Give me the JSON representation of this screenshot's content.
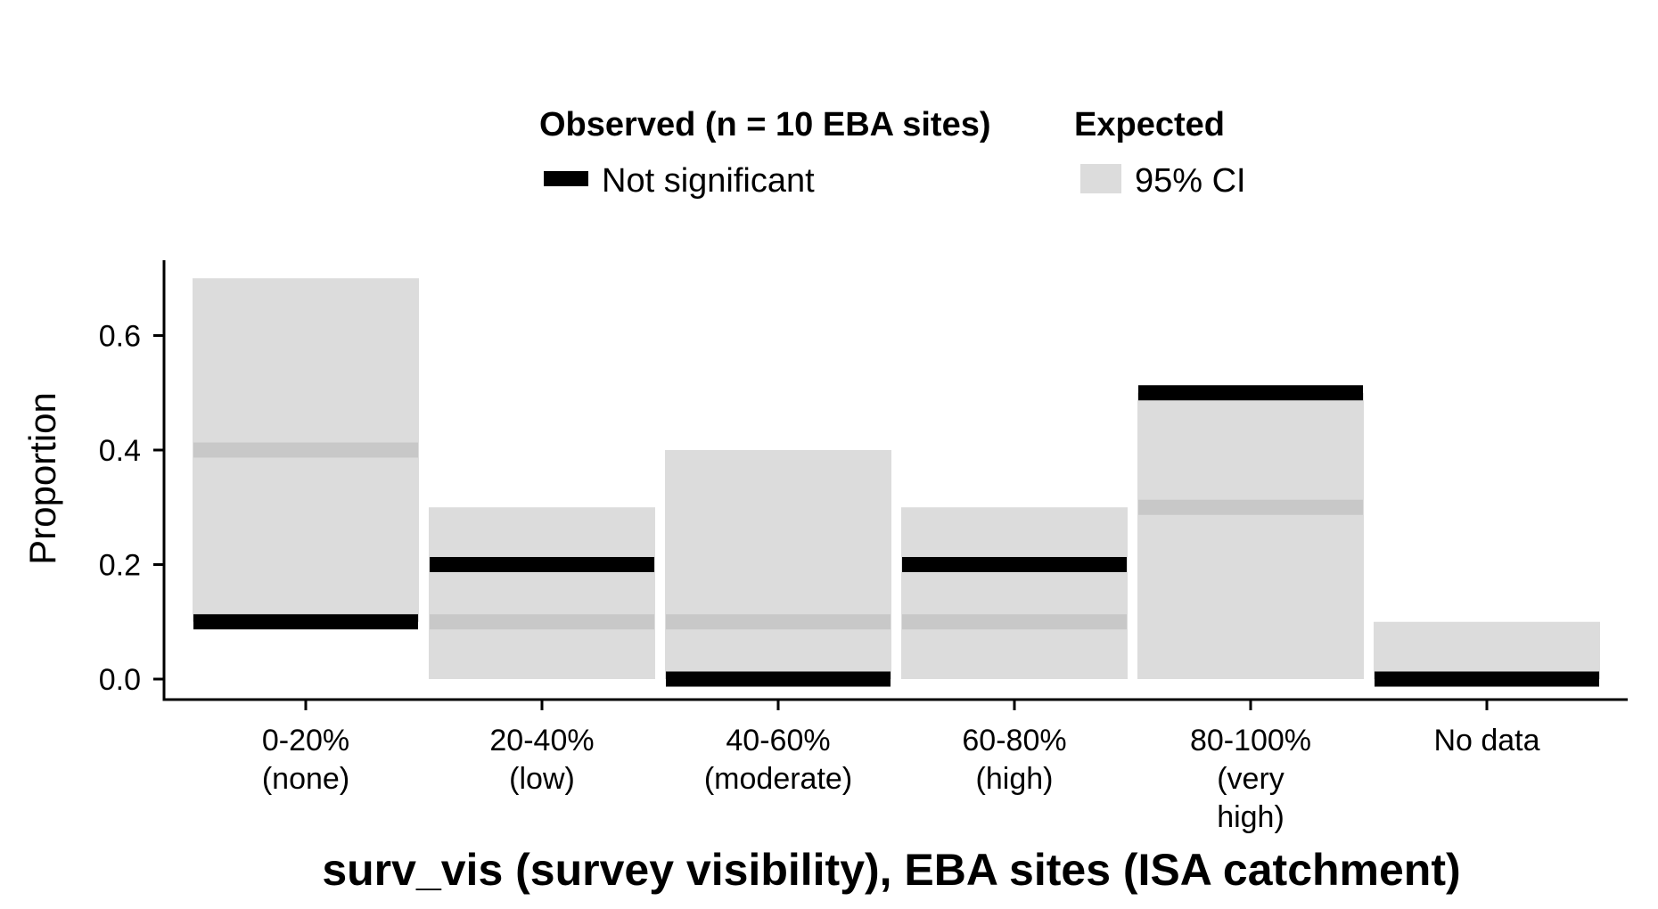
{
  "chart_data": {
    "type": "bar",
    "xlabel": "surv_vis (survey visibility), EBA sites (ISA catchment)",
    "ylabel": "Proportion",
    "ylim": [
      0,
      0.7
    ],
    "yticks": [
      "0.0",
      "0.2",
      "0.4",
      "0.6"
    ],
    "ytick_values": [
      0.0,
      0.2,
      0.4,
      0.6
    ],
    "grid": false,
    "legend_position": "top",
    "categories": [
      [
        "0-20%",
        "(none)"
      ],
      [
        "20-40%",
        "(low)"
      ],
      [
        "40-60%",
        "(moderate)"
      ],
      [
        "60-80%",
        "(high)"
      ],
      [
        "80-100%",
        "(very",
        "high)"
      ],
      [
        "No data"
      ]
    ],
    "observed": [
      0.1,
      0.2,
      0.0,
      0.2,
      0.5,
      0.0
    ],
    "expected": [
      0.4,
      0.1,
      0.1,
      0.1,
      0.3,
      0.0
    ],
    "ci_low": [
      0.1,
      0.0,
      0.0,
      0.0,
      0.0,
      0.0
    ],
    "ci_high": [
      0.7,
      0.3,
      0.4,
      0.3,
      0.5,
      0.1
    ],
    "legend": {
      "observed_title": "Observed (n = 10 EBA sites)",
      "observed_label": "Not significant",
      "expected_title": "Expected",
      "expected_label": "95% CI"
    },
    "colors": {
      "observed": "#000000",
      "ci_band": "#dcdcdc",
      "expected_line": "#c8c8c8",
      "axis": "#000000"
    }
  }
}
